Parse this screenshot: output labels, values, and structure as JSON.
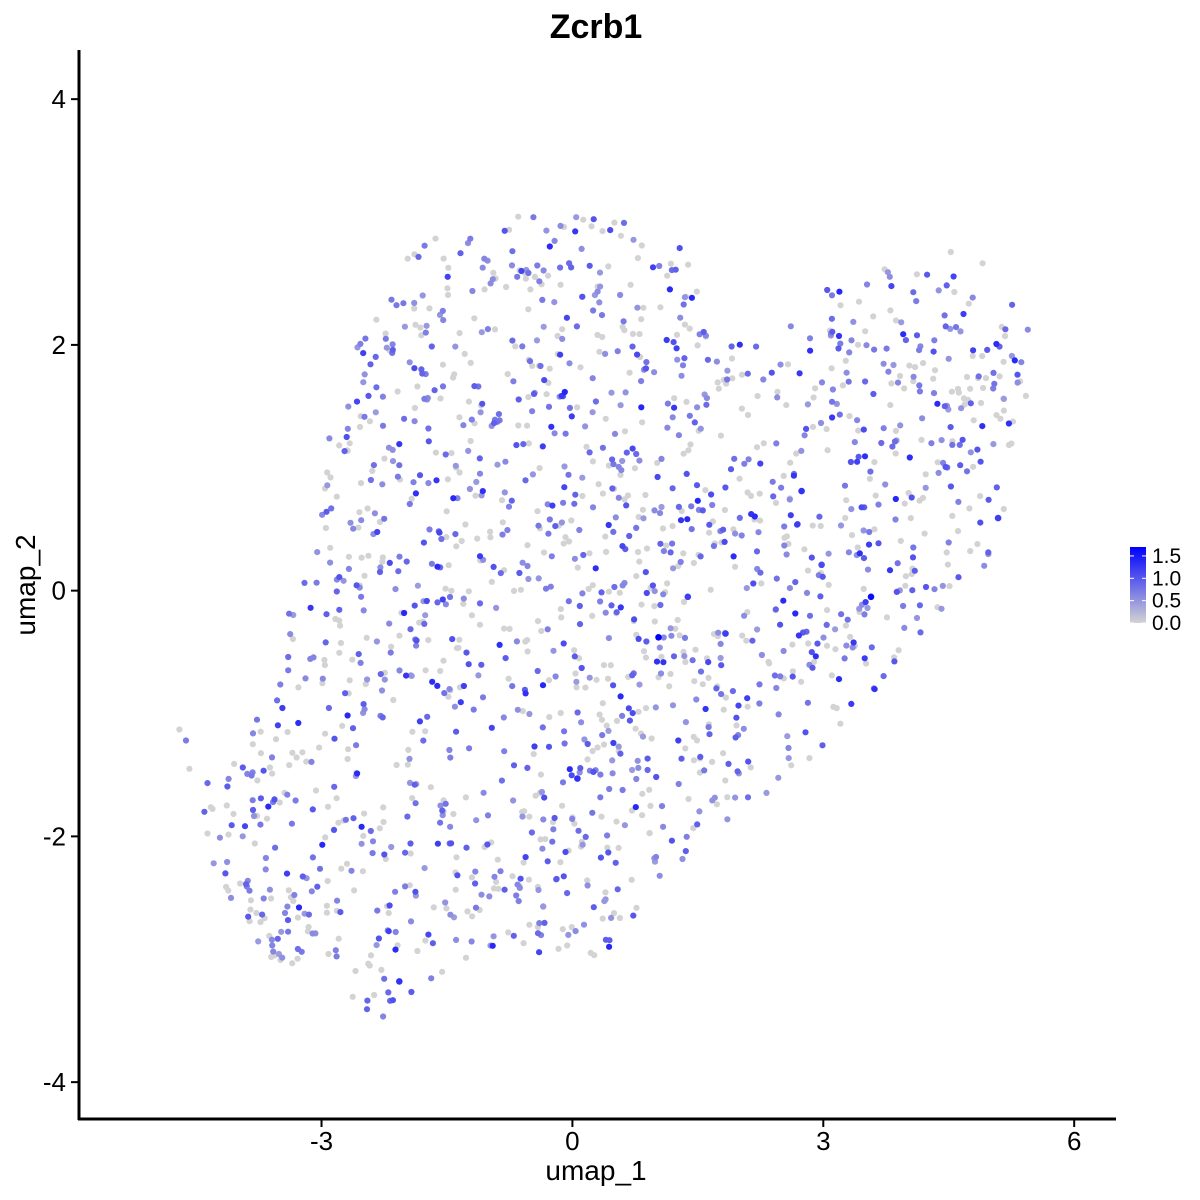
{
  "chart_data": {
    "type": "scatter",
    "title": "Zcrb1",
    "xlabel": "umap_1",
    "ylabel": "umap_2",
    "xlim": [
      -5.9,
      6.5
    ],
    "ylim": [
      -4.3,
      4.4
    ],
    "xticks": [
      -3,
      0,
      3,
      6
    ],
    "yticks": [
      -4,
      -2,
      0,
      2,
      4
    ],
    "grid": false,
    "legend": {
      "position": "right",
      "type": "colorbar",
      "min": 0.0,
      "max": 1.7,
      "ticks": [
        0.0,
        0.5,
        1.0,
        1.5
      ],
      "low_color": "#d3d3d3",
      "high_color": "#0000ff"
    },
    "highlighted_points": [
      {
        "x": 1.03,
        "y": -0.38,
        "value": 1.7
      },
      {
        "x": 3.57,
        "y": -0.05,
        "value": 1.6
      },
      {
        "x": 2.74,
        "y": 0.81,
        "value": 1.3
      },
      {
        "x": 1.38,
        "y": -0.05,
        "value": 1.2
      },
      {
        "x": 1.83,
        "y": -0.35,
        "value": 1.2
      },
      {
        "x": 0.06,
        "y": -1.53,
        "value": 1.3
      },
      {
        "x": -2.07,
        "y": -3.18,
        "value": 1.3
      },
      {
        "x": 5.09,
        "y": 0.59,
        "value": 1.2
      },
      {
        "x": 2.98,
        "y": 0.21,
        "value": 1.1
      }
    ],
    "point_cloud": {
      "description_units": "umap",
      "n_points": 1750,
      "value_range": [
        0.0,
        1.5
      ],
      "hull": [
        [
          -4.75,
          -1.3
        ],
        [
          -4.35,
          -1.55
        ],
        [
          -4.05,
          -1.25
        ],
        [
          -3.55,
          -0.8
        ],
        [
          -3.4,
          -0.15
        ],
        [
          -3.1,
          0.45
        ],
        [
          -2.9,
          1.3
        ],
        [
          -2.6,
          2.05
        ],
        [
          -2.25,
          2.6
        ],
        [
          -1.7,
          2.9
        ],
        [
          -1.1,
          3.05
        ],
        [
          -0.4,
          3.05
        ],
        [
          0.2,
          3.1
        ],
        [
          0.9,
          2.95
        ],
        [
          1.3,
          2.8
        ],
        [
          1.8,
          2.05
        ],
        [
          2.4,
          2.0
        ],
        [
          3.0,
          2.45
        ],
        [
          3.6,
          2.55
        ],
        [
          4.2,
          2.85
        ],
        [
          4.55,
          3.05
        ],
        [
          5.0,
          2.7
        ],
        [
          5.45,
          2.2
        ],
        [
          5.45,
          1.6
        ],
        [
          5.25,
          0.8
        ],
        [
          5.0,
          0.2
        ],
        [
          4.4,
          -0.2
        ],
        [
          3.7,
          -0.75
        ],
        [
          3.3,
          -1.0
        ],
        [
          2.9,
          -1.35
        ],
        [
          2.3,
          -1.7
        ],
        [
          1.6,
          -2.0
        ],
        [
          1.0,
          -2.4
        ],
        [
          0.6,
          -2.9
        ],
        [
          0.0,
          -3.05
        ],
        [
          -0.6,
          -2.9
        ],
        [
          -1.2,
          -3.0
        ],
        [
          -1.8,
          -3.25
        ],
        [
          -2.25,
          -3.5
        ],
        [
          -2.7,
          -3.35
        ],
        [
          -3.3,
          -3.15
        ],
        [
          -3.8,
          -2.9
        ],
        [
          -4.2,
          -2.5
        ],
        [
          -4.4,
          -1.9
        ]
      ]
    }
  },
  "colors": {
    "low": "#d3d3d3",
    "mid": "#9c6ae6",
    "high": "#2222ff"
  }
}
